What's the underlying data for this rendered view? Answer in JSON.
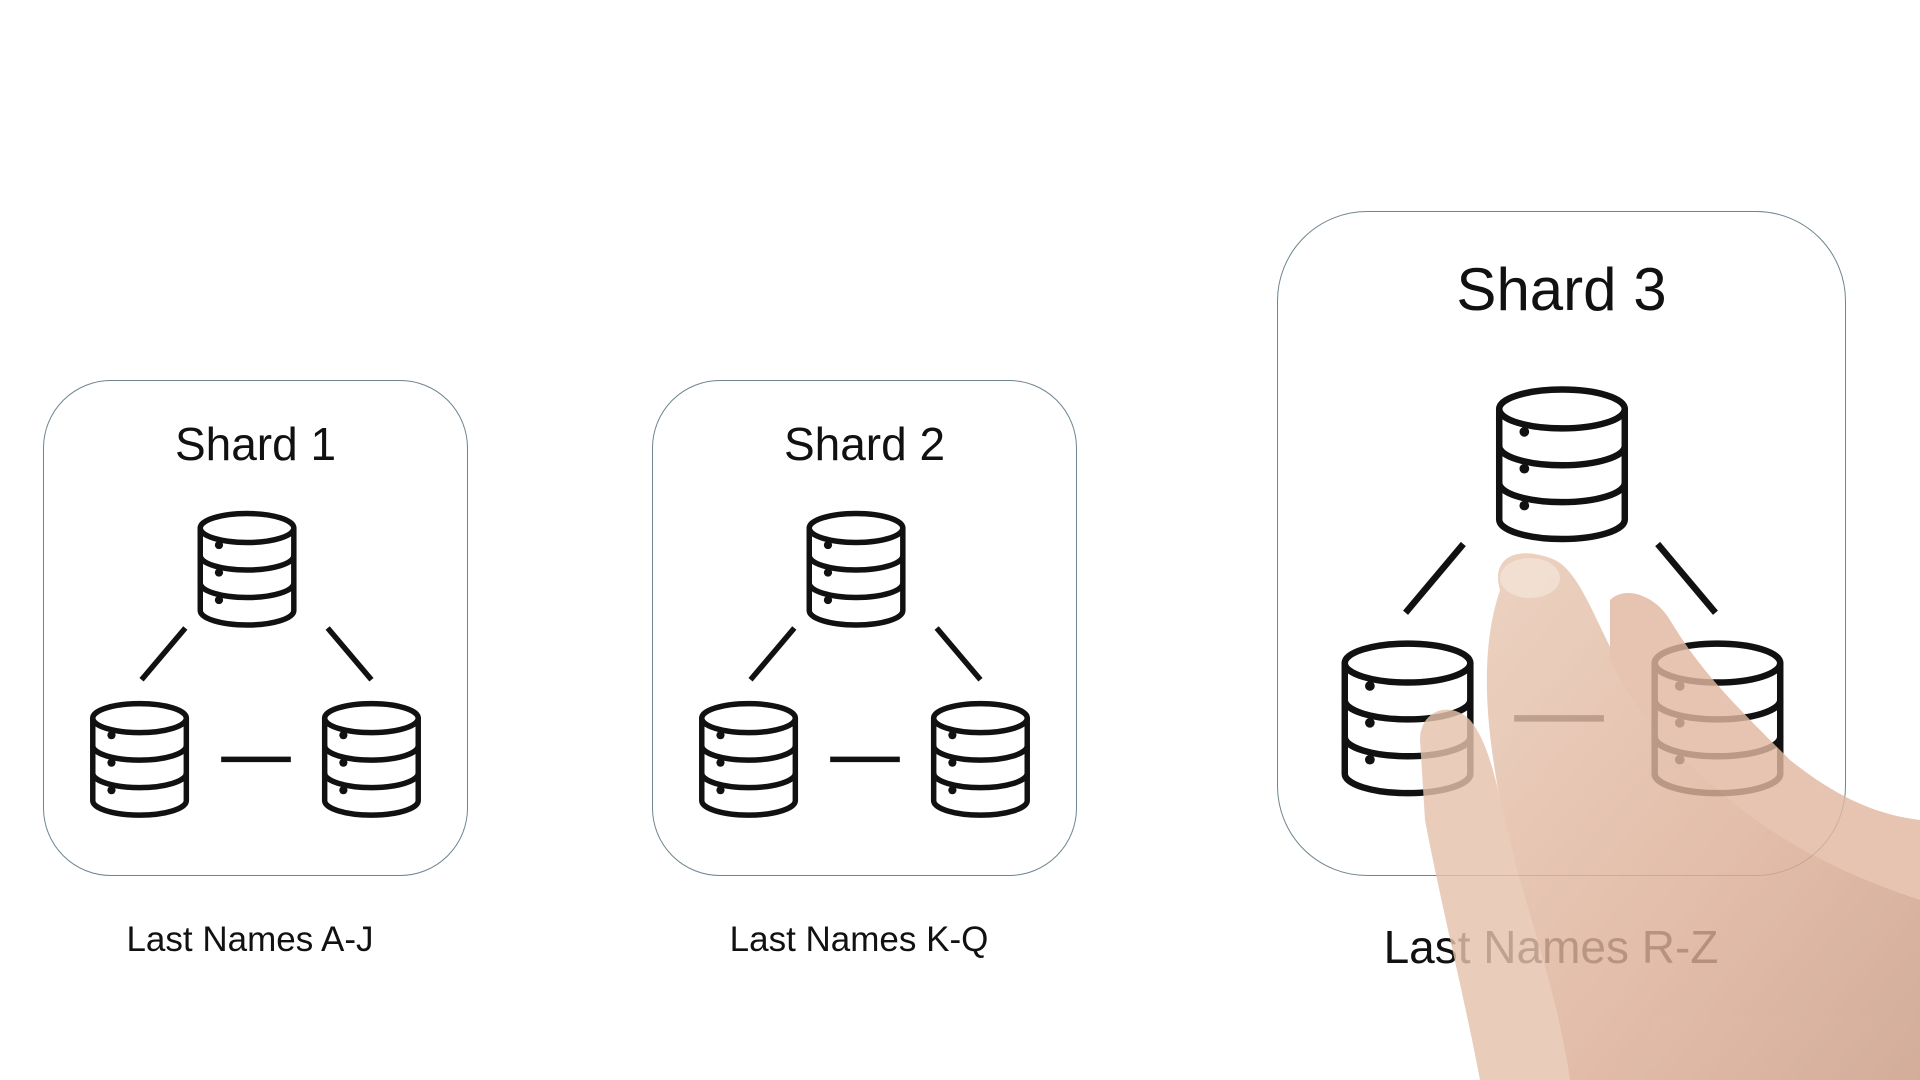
{
  "shards": [
    {
      "title": "Shard 1",
      "caption": "Last Names A-J"
    },
    {
      "title": "Shard 2",
      "caption": "Last Names K-Q"
    },
    {
      "title": "Shard 3",
      "caption": "Last Names R-Z"
    }
  ],
  "icons": {
    "database": "database-icon"
  },
  "colors": {
    "box_border": "#6f8590",
    "icon_stroke": "#111111",
    "background": "#ffffff"
  }
}
